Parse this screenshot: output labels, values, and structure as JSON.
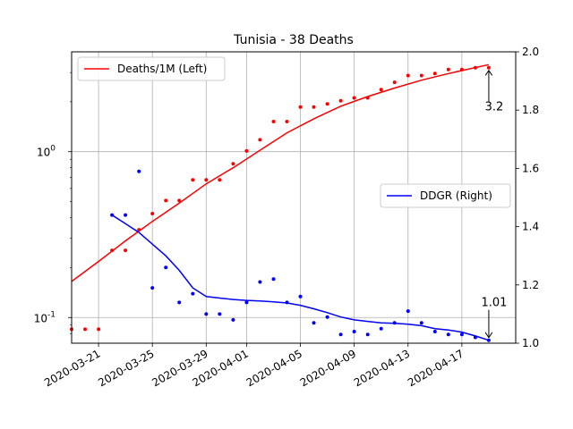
{
  "chart_data": {
    "type": "line",
    "title": "Tunisia - 38 Deaths",
    "x_ticks": [
      "2020-03-21",
      "2020-03-25",
      "2020-03-29",
      "2020-04-01",
      "2020-04-05",
      "2020-04-09",
      "2020-04-13",
      "2020-04-17"
    ],
    "x_range": [
      "2020-03-19",
      "2020-04-21"
    ],
    "left_axis": {
      "scale": "log",
      "range": [
        0.07,
        4.0
      ],
      "tick_labels": [
        "10^-1",
        "10^0"
      ],
      "tick_values": [
        0.1,
        1.0
      ]
    },
    "right_axis": {
      "scale": "linear",
      "range": [
        1.0,
        2.0
      ],
      "tick_labels": [
        "1.0",
        "1.2",
        "1.4",
        "1.6",
        "1.8",
        "2.0"
      ],
      "tick_values": [
        1.0,
        1.2,
        1.4,
        1.6,
        1.8,
        2.0
      ]
    },
    "grid": true,
    "series": [
      {
        "name": "Deaths/1M (Left)",
        "axis": "left",
        "color": "#ff0000",
        "points_x": [
          "2020-03-19",
          "2020-03-20",
          "2020-03-21",
          "2020-03-22",
          "2020-03-23",
          "2020-03-24",
          "2020-03-25",
          "2020-03-26",
          "2020-03-27",
          "2020-03-28",
          "2020-03-29",
          "2020-03-30",
          "2020-03-31",
          "2020-04-01",
          "2020-04-02",
          "2020-04-03",
          "2020-04-04",
          "2020-04-05",
          "2020-04-06",
          "2020-04-07",
          "2020-04-08",
          "2020-04-09",
          "2020-04-10",
          "2020-04-11",
          "2020-04-12",
          "2020-04-13",
          "2020-04-14",
          "2020-04-15",
          "2020-04-16",
          "2020-04-17",
          "2020-04-18",
          "2020-04-19"
        ],
        "points_y": [
          0.085,
          0.085,
          0.085,
          0.254,
          0.254,
          0.338,
          0.423,
          0.507,
          0.507,
          0.676,
          0.676,
          0.676,
          0.845,
          1.01,
          1.18,
          1.52,
          1.52,
          1.86,
          1.86,
          1.94,
          2.03,
          2.11,
          2.11,
          2.37,
          2.62,
          2.88,
          2.88,
          2.96,
          3.13,
          3.13,
          3.21,
          3.21
        ],
        "fit_x": [
          "2020-03-19",
          "2020-03-21",
          "2020-03-23",
          "2020-03-25",
          "2020-03-27",
          "2020-03-29",
          "2020-03-31",
          "2020-04-02",
          "2020-04-04",
          "2020-04-06",
          "2020-04-08",
          "2020-04-10",
          "2020-04-12",
          "2020-04-14",
          "2020-04-16",
          "2020-04-19"
        ],
        "fit_y": [
          0.165,
          0.218,
          0.29,
          0.38,
          0.49,
          0.64,
          0.8,
          1.02,
          1.3,
          1.58,
          1.88,
          2.15,
          2.42,
          2.7,
          2.96,
          3.35
        ]
      },
      {
        "name": "DDGR (Right)",
        "axis": "right",
        "color": "#0000ff",
        "points_x": [
          "2020-03-22",
          "2020-03-23",
          "2020-03-24",
          "2020-03-25",
          "2020-03-26",
          "2020-03-27",
          "2020-03-28",
          "2020-03-29",
          "2020-03-30",
          "2020-03-31",
          "2020-04-01",
          "2020-04-02",
          "2020-04-03",
          "2020-04-04",
          "2020-04-05",
          "2020-04-06",
          "2020-04-07",
          "2020-04-08",
          "2020-04-09",
          "2020-04-10",
          "2020-04-11",
          "2020-04-12",
          "2020-04-13",
          "2020-04-14",
          "2020-04-15",
          "2020-04-16",
          "2020-04-17",
          "2020-04-18",
          "2020-04-19"
        ],
        "points_y": [
          1.44,
          1.44,
          1.59,
          1.19,
          1.26,
          1.14,
          1.17,
          1.1,
          1.1,
          1.08,
          1.14,
          1.21,
          1.22,
          1.14,
          1.16,
          1.07,
          1.09,
          1.03,
          1.04,
          1.03,
          1.05,
          1.07,
          1.11,
          1.07,
          1.04,
          1.03,
          1.03,
          1.02,
          1.01
        ],
        "fit_x": [
          "2020-03-22",
          "2020-03-23",
          "2020-03-24",
          "2020-03-25",
          "2020-03-26",
          "2020-03-27",
          "2020-03-28",
          "2020-03-29",
          "2020-03-30",
          "2020-03-31",
          "2020-04-01",
          "2020-04-02",
          "2020-04-03",
          "2020-04-04",
          "2020-04-05",
          "2020-04-06",
          "2020-04-07",
          "2020-04-08",
          "2020-04-09",
          "2020-04-10",
          "2020-04-11",
          "2020-04-12",
          "2020-04-13",
          "2020-04-14",
          "2020-04-15",
          "2020-04-16",
          "2020-04-17",
          "2020-04-18",
          "2020-04-19"
        ],
        "fit_y": [
          1.44,
          1.41,
          1.38,
          1.34,
          1.3,
          1.25,
          1.19,
          1.16,
          1.155,
          1.15,
          1.147,
          1.145,
          1.142,
          1.138,
          1.13,
          1.118,
          1.105,
          1.09,
          1.08,
          1.075,
          1.07,
          1.068,
          1.065,
          1.06,
          1.05,
          1.045,
          1.038,
          1.025,
          1.01
        ]
      }
    ],
    "legends": [
      {
        "label": "Deaths/1M (Left)",
        "placement": "upper-left"
      },
      {
        "label": "DDGR (Right)",
        "placement": "center-right"
      }
    ],
    "annotations": [
      {
        "text": "3.2",
        "series": "Deaths/1M (Left)",
        "x": "2020-04-19",
        "y": 3.21
      },
      {
        "text": "1.01",
        "series": "DDGR (Right)",
        "x": "2020-04-19",
        "y": 1.01
      }
    ]
  }
}
